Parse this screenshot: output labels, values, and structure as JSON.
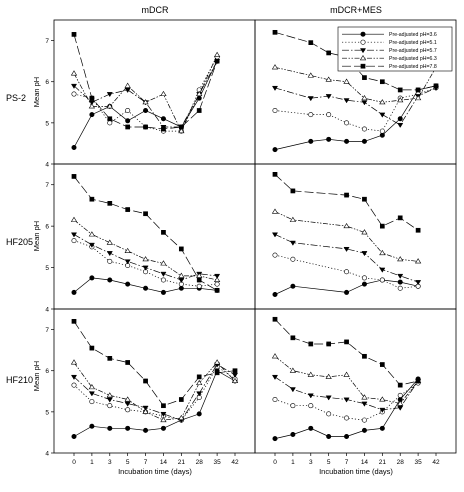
{
  "figure": {
    "col_titles": [
      "mDCR",
      "mDCR+MES"
    ],
    "row_titles": [
      "PS-2",
      "HF205",
      "HF210"
    ],
    "ylabel": "Mean pH",
    "xlabel": "Incubation time (days)"
  },
  "legend": {
    "entries": [
      "Pre-adjusted pH=3.6",
      "Pre-adjusted pH=5.1",
      "Pre-adjusted pH=5.7",
      "Pre-adjusted pH=6.3",
      "Pre-adjusted pH=7.8"
    ]
  },
  "chart_data": {
    "type": "line",
    "x": [
      0,
      1,
      3,
      5,
      7,
      14,
      21,
      28,
      35,
      42
    ],
    "x_tick_labels": [
      "0",
      "1",
      "3",
      "5",
      "7",
      "14",
      "21",
      "28",
      "35",
      "42"
    ],
    "y_ticks": [
      4,
      5,
      6,
      7
    ],
    "ylim": [
      4,
      7.5
    ],
    "grid": false,
    "legend_position": "top-right of mDCR+MES / PS-2 panel",
    "series_styles": [
      {
        "name": "Pre-adjusted pH=3.6",
        "marker": "filled-circle",
        "line": "solid"
      },
      {
        "name": "Pre-adjusted pH=5.1",
        "marker": "open-circle",
        "line": "dotted"
      },
      {
        "name": "Pre-adjusted pH=5.7",
        "marker": "filled-triangle-down",
        "line": "dash-dot"
      },
      {
        "name": "Pre-adjusted pH=6.3",
        "marker": "open-triangle-up",
        "line": "dash-dot-dot"
      },
      {
        "name": "Pre-adjusted pH=7.8",
        "marker": "filled-square",
        "line": "long-dash"
      }
    ],
    "panels": [
      {
        "row": "PS-2",
        "col": "mDCR",
        "series": [
          [
            4.4,
            5.2,
            5.4,
            5.05,
            5.3,
            5.1,
            4.9,
            5.6,
            6.5,
            null
          ],
          [
            5.7,
            5.6,
            5.0,
            5.3,
            4.9,
            4.8,
            4.8,
            5.8,
            6.6,
            null
          ],
          [
            5.9,
            5.5,
            5.7,
            5.8,
            5.5,
            4.9,
            4.9,
            5.7,
            6.5,
            null
          ],
          [
            6.2,
            5.4,
            5.4,
            5.9,
            5.5,
            5.7,
            4.8,
            5.7,
            6.65,
            null
          ],
          [
            7.15,
            5.6,
            5.1,
            4.9,
            4.9,
            4.85,
            4.9,
            5.3,
            6.5,
            null
          ]
        ]
      },
      {
        "row": "PS-2",
        "col": "mDCR+MES",
        "series": [
          [
            4.35,
            null,
            4.55,
            4.6,
            4.55,
            4.55,
            4.7,
            5.1,
            5.8,
            5.9
          ],
          [
            5.3,
            null,
            5.2,
            5.2,
            5.0,
            4.85,
            4.8,
            5.6,
            5.7,
            5.85
          ],
          [
            5.85,
            null,
            5.6,
            5.65,
            5.55,
            5.5,
            5.2,
            4.95,
            5.65,
            5.85
          ],
          [
            6.35,
            null,
            6.15,
            6.05,
            6.0,
            5.6,
            5.5,
            5.55,
            5.6,
            6.35
          ],
          [
            7.2,
            null,
            6.95,
            6.7,
            6.6,
            6.1,
            6.0,
            5.8,
            5.8,
            5.9
          ]
        ]
      },
      {
        "row": "HF205",
        "col": "mDCR",
        "series": [
          [
            4.4,
            4.75,
            4.7,
            4.6,
            4.5,
            4.4,
            4.5,
            4.5,
            4.45,
            null
          ],
          [
            5.65,
            5.5,
            5.15,
            5.05,
            4.9,
            4.7,
            4.6,
            4.55,
            4.6,
            null
          ],
          [
            5.8,
            5.55,
            5.35,
            5.15,
            5.0,
            4.85,
            4.7,
            4.85,
            4.8,
            null
          ],
          [
            6.15,
            5.8,
            5.6,
            5.4,
            5.2,
            5.1,
            4.8,
            4.8,
            4.7,
            null
          ],
          [
            7.2,
            6.65,
            6.55,
            6.4,
            6.3,
            5.85,
            5.45,
            4.7,
            4.45,
            null
          ]
        ]
      },
      {
        "row": "HF205",
        "col": "mDCR+MES",
        "series": [
          [
            4.35,
            4.55,
            null,
            null,
            4.4,
            4.6,
            4.7,
            4.65,
            4.55,
            null
          ],
          [
            5.3,
            5.2,
            null,
            null,
            4.9,
            4.75,
            4.7,
            4.5,
            4.55,
            null
          ],
          [
            5.8,
            5.6,
            null,
            null,
            5.45,
            5.35,
            4.95,
            4.8,
            4.65,
            null
          ],
          [
            6.35,
            6.15,
            null,
            null,
            6.0,
            5.85,
            5.35,
            5.2,
            5.15,
            null
          ],
          [
            7.25,
            6.85,
            null,
            null,
            6.75,
            6.65,
            6.0,
            6.2,
            5.9,
            null
          ]
        ]
      },
      {
        "row": "HF210",
        "col": "mDCR",
        "series": [
          [
            4.4,
            4.65,
            4.6,
            4.6,
            4.55,
            4.6,
            4.8,
            4.95,
            6.0,
            5.75
          ],
          [
            5.65,
            5.25,
            5.15,
            5.05,
            5.0,
            4.9,
            4.8,
            5.35,
            6.1,
            5.8
          ],
          [
            5.85,
            5.45,
            5.3,
            5.2,
            5.1,
            4.95,
            4.8,
            5.45,
            6.15,
            5.9
          ],
          [
            6.2,
            5.6,
            5.4,
            5.3,
            5.0,
            4.8,
            4.85,
            5.7,
            6.2,
            5.75
          ],
          [
            7.2,
            6.55,
            6.3,
            6.2,
            5.75,
            5.15,
            5.3,
            5.85,
            5.95,
            6.0
          ]
        ]
      },
      {
        "row": "HF210",
        "col": "mDCR+MES",
        "series": [
          [
            4.35,
            4.45,
            4.6,
            4.4,
            4.4,
            4.55,
            4.6,
            5.3,
            5.8,
            null
          ],
          [
            5.3,
            5.15,
            5.15,
            4.95,
            4.85,
            4.8,
            5.0,
            5.4,
            5.7,
            null
          ],
          [
            5.85,
            5.55,
            5.4,
            5.35,
            5.3,
            5.2,
            5.05,
            5.1,
            5.75,
            null
          ],
          [
            6.35,
            6.0,
            5.9,
            5.85,
            5.9,
            5.35,
            5.3,
            5.2,
            5.75,
            null
          ],
          [
            7.25,
            6.8,
            6.65,
            6.65,
            6.7,
            6.35,
            6.15,
            5.65,
            5.75,
            null
          ]
        ]
      }
    ]
  }
}
